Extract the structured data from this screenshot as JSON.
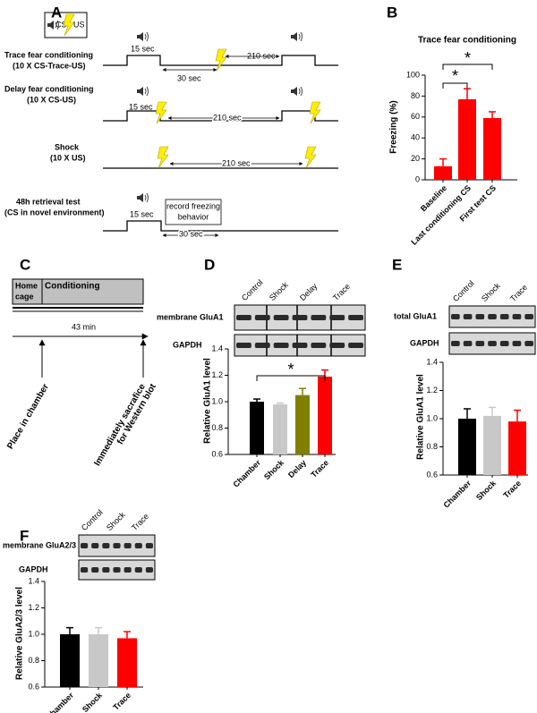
{
  "panel_labels": [
    "A",
    "B",
    "C",
    "D",
    "E",
    "F"
  ],
  "panel_a": {
    "legend": [
      "CS",
      "US"
    ],
    "rows": [
      {
        "label": "Trace fear conditioning",
        "sublabel": "(10 X CS-Trace-US)",
        "times": [
          "15 sec",
          "210 sec",
          "30 sec"
        ]
      },
      {
        "label": "Delay fear conditioning",
        "sublabel": "(10 X CS-US)",
        "times": [
          "15 sec",
          "210 sec"
        ]
      },
      {
        "label": "Shock",
        "sublabel": "(10 X US)",
        "times": [
          "210 sec"
        ]
      },
      {
        "label": "48h retrieval test",
        "sublabel": "(CS in novel environment)",
        "times": [
          "15 sec",
          "30 sec"
        ],
        "box": [
          "record freezing",
          "behavior"
        ]
      }
    ]
  },
  "panel_c": {
    "home_cage": [
      "Home",
      "cage"
    ],
    "conditioning": "Conditioning",
    "duration": "43 min",
    "events": [
      [
        "Place in chamber"
      ],
      [
        "Immediately sacrafice",
        "for Western blot"
      ]
    ]
  },
  "chart_data": [
    {
      "type": "bar",
      "title": "Trace fear conditioning",
      "ylabel": "Freezing (%)",
      "categories": [
        "Baseline",
        "Last conditioning CS",
        "First test CS"
      ],
      "values": [
        13,
        77,
        59
      ],
      "errors": [
        7,
        10,
        6
      ],
      "colors": [
        "#ff0000",
        "#ff0000",
        "#ff0000"
      ],
      "ylim": [
        0,
        100
      ],
      "yticks": [
        0,
        20,
        40,
        60,
        80,
        100
      ],
      "annotations": [
        "*",
        "*"
      ]
    },
    {
      "type": "bar",
      "ylabel": "Relative GluA1 level",
      "lanes": [
        "Control",
        "Shock",
        "Delay",
        "Trace"
      ],
      "blot_rows": [
        "membrane GluA1",
        "GAPDH"
      ],
      "categories": [
        "Chamber",
        "Shock",
        "Delay",
        "Trace"
      ],
      "values": [
        1.0,
        0.98,
        1.05,
        1.19
      ],
      "errors": [
        0.02,
        0.01,
        0.05,
        0.05
      ],
      "colors": [
        "#000000",
        "#c8c8c8",
        "#808000",
        "#ff0000"
      ],
      "ylim": [
        0.6,
        1.4
      ],
      "yticks": [
        0.6,
        0.8,
        {
          "value": 1.0,
          "label": "1.0"
        },
        1.2,
        1.4
      ],
      "annotations": [
        "*"
      ]
    },
    {
      "type": "bar",
      "ylabel": "Relative GluA1 level",
      "lanes": [
        "Control",
        "Shock",
        "Trace"
      ],
      "blot_rows": [
        "total GluA1",
        "GAPDH"
      ],
      "categories": [
        "Chamber",
        "Shock",
        "Trace"
      ],
      "values": [
        1.0,
        1.02,
        0.98
      ],
      "errors": [
        0.07,
        0.06,
        0.08
      ],
      "colors": [
        "#000000",
        "#c8c8c8",
        "#ff0000"
      ],
      "ylim": [
        0.6,
        1.4
      ],
      "yticks": [
        0.6,
        0.8,
        {
          "value": 1.0,
          "label": "1.0"
        },
        1.2,
        1.4
      ]
    },
    {
      "type": "bar",
      "ylabel": "Relative GluA2/3 level",
      "lanes": [
        "Control",
        "Shock",
        "Trace"
      ],
      "blot_rows": [
        "membrane GluA2/3",
        "GAPDH"
      ],
      "categories": [
        "Chamber",
        "Shock",
        "Trace"
      ],
      "values": [
        1.0,
        1.0,
        0.97
      ],
      "errors": [
        0.05,
        0.05,
        0.05
      ],
      "colors": [
        "#000000",
        "#c8c8c8",
        "#ff0000"
      ],
      "ylim": [
        0.6,
        1.4
      ],
      "yticks": [
        0.6,
        0.8,
        {
          "value": 1.0,
          "label": "1.0"
        },
        1.2,
        1.4
      ]
    }
  ]
}
